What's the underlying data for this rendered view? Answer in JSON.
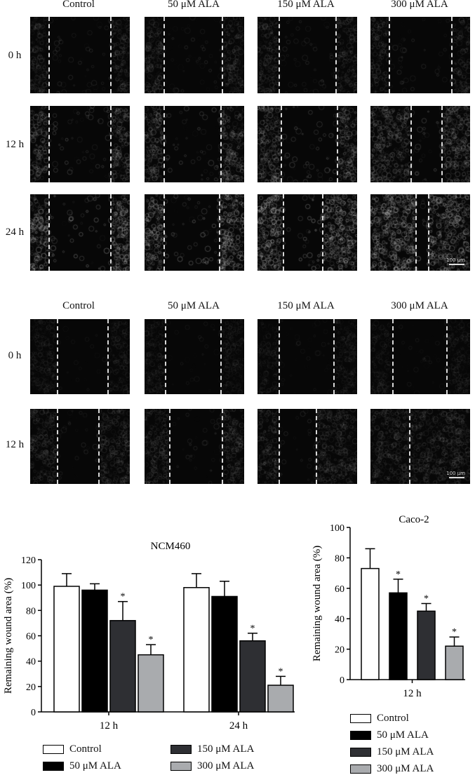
{
  "panel_a": {
    "columns": [
      "Control",
      "50 μM ALA",
      "150 μM ALA",
      "300 μM ALA"
    ],
    "rows": [
      "0 h",
      "12 h",
      "24 h"
    ],
    "scale_bar": "100 μm"
  },
  "panel_b": {
    "columns": [
      "Control",
      "50 μM ALA",
      "150 μM ALA",
      "300 μM ALA"
    ],
    "rows": [
      "0 h",
      "12 h"
    ],
    "scale_bar": "100 μm"
  },
  "colors": {
    "control": "#ffffff",
    "ala50": "#000000",
    "ala150": "#2e2f33",
    "ala300": "#a9abae"
  },
  "chart_data": [
    {
      "type": "bar",
      "title": "NCM460",
      "ylabel": "Remaining wound area (%)",
      "ylim": [
        0,
        120
      ],
      "yticks": [
        0,
        20,
        40,
        60,
        80,
        100,
        120
      ],
      "categories": [
        "12 h",
        "24 h"
      ],
      "series": [
        {
          "name": "Control",
          "values": [
            99,
            98
          ],
          "errors": [
            10,
            11
          ],
          "significant": [
            false,
            false
          ]
        },
        {
          "name": "50 μM ALA",
          "values": [
            96,
            91
          ],
          "errors": [
            5,
            12
          ],
          "significant": [
            false,
            false
          ]
        },
        {
          "name": "150 μM ALA",
          "values": [
            72,
            56
          ],
          "errors": [
            15,
            6
          ],
          "significant": [
            true,
            true
          ]
        },
        {
          "name": "300 μM ALA",
          "values": [
            45,
            21
          ],
          "errors": [
            8,
            7
          ],
          "significant": [
            true,
            true
          ]
        }
      ],
      "significance_mark": "*"
    },
    {
      "type": "bar",
      "title": "Caco-2",
      "ylabel": "Remaining wound area (%)",
      "ylim": [
        0,
        100
      ],
      "yticks": [
        0,
        20,
        40,
        60,
        80,
        100
      ],
      "categories": [
        "12 h"
      ],
      "series": [
        {
          "name": "Control",
          "values": [
            73
          ],
          "errors": [
            13
          ],
          "significant": [
            false
          ]
        },
        {
          "name": "50 μM ALA",
          "values": [
            57
          ],
          "errors": [
            9
          ],
          "significant": [
            true
          ]
        },
        {
          "name": "150 μM ALA",
          "values": [
            45
          ],
          "errors": [
            5
          ],
          "significant": [
            true
          ]
        },
        {
          "name": "300 μM ALA",
          "values": [
            22
          ],
          "errors": [
            6
          ],
          "significant": [
            true
          ]
        }
      ],
      "significance_mark": "*"
    }
  ]
}
